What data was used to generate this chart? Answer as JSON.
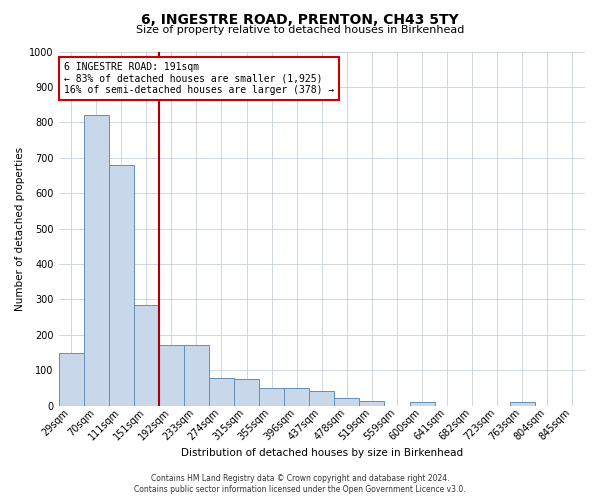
{
  "title": "6, INGESTRE ROAD, PRENTON, CH43 5TY",
  "subtitle": "Size of property relative to detached houses in Birkenhead",
  "xlabel": "Distribution of detached houses by size in Birkenhead",
  "ylabel": "Number of detached properties",
  "categories": [
    "29sqm",
    "70sqm",
    "111sqm",
    "151sqm",
    "192sqm",
    "233sqm",
    "274sqm",
    "315sqm",
    "355sqm",
    "396sqm",
    "437sqm",
    "478sqm",
    "519sqm",
    "559sqm",
    "600sqm",
    "641sqm",
    "682sqm",
    "723sqm",
    "763sqm",
    "804sqm",
    "845sqm"
  ],
  "values": [
    148,
    820,
    680,
    283,
    172,
    172,
    77,
    76,
    50,
    50,
    40,
    22,
    12,
    0,
    10,
    0,
    0,
    0,
    9,
    0,
    0
  ],
  "bar_color": "#c8d8ea",
  "bar_edge_color": "#6090b8",
  "property_line_color": "#aa0000",
  "ylim": [
    0,
    1000
  ],
  "yticks": [
    0,
    100,
    200,
    300,
    400,
    500,
    600,
    700,
    800,
    900,
    1000
  ],
  "annotation_text": "6 INGESTRE ROAD: 191sqm\n← 83% of detached houses are smaller (1,925)\n16% of semi-detached houses are larger (378) →",
  "annotation_box_color": "#ffffff",
  "annotation_box_edge": "#cc0000",
  "footer_line1": "Contains HM Land Registry data © Crown copyright and database right 2024.",
  "footer_line2": "Contains public sector information licensed under the Open Government Licence v3.0.",
  "background_color": "#ffffff",
  "grid_color": "#c8d0da",
  "title_fontsize": 10,
  "subtitle_fontsize": 8,
  "xlabel_fontsize": 7.5,
  "ylabel_fontsize": 7.5,
  "tick_fontsize": 7,
  "annotation_fontsize": 7,
  "footer_fontsize": 5.5
}
